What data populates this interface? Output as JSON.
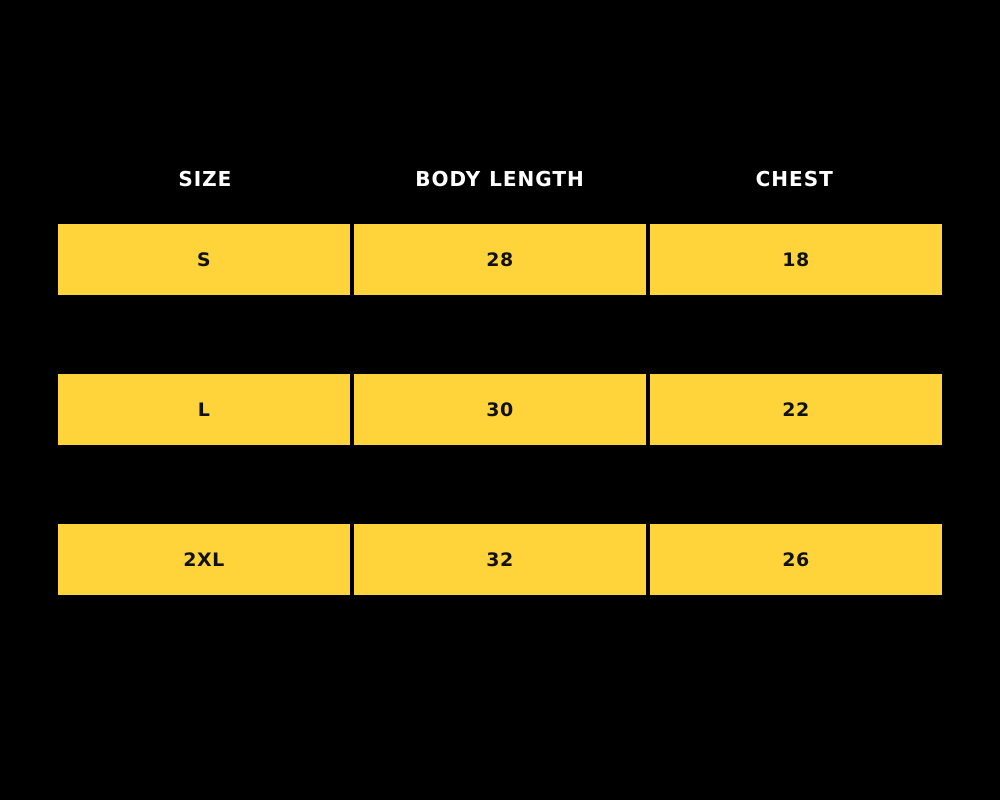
{
  "chart_data": {
    "type": "table",
    "title": "",
    "columns": [
      "SIZE",
      "BODY LENGTH",
      "CHEST"
    ],
    "rows": [
      [
        "S",
        "28",
        "18"
      ],
      [
        "L",
        "30",
        "22"
      ],
      [
        "2XL",
        "32",
        "26"
      ]
    ]
  },
  "table": {
    "headers": {
      "size": "SIZE",
      "body_length": "BODY LENGTH",
      "chest": "CHEST"
    },
    "rows": [
      {
        "size": "S",
        "body_length": "28",
        "chest": "18"
      },
      {
        "size": "L",
        "body_length": "30",
        "chest": "22"
      },
      {
        "size": "2XL",
        "body_length": "32",
        "chest": "26"
      }
    ],
    "colors": {
      "background": "#000000",
      "row_fill": "#FFD43B",
      "header_text": "#FFFFFF",
      "cell_text": "#111111",
      "divider": "#000000"
    }
  }
}
